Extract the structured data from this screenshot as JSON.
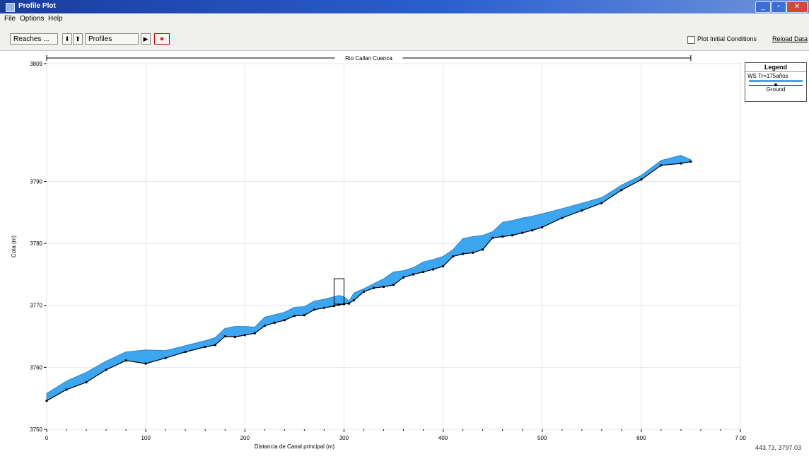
{
  "window": {
    "title": "Profile Plot"
  },
  "menu": {
    "file": "File",
    "options": "Options",
    "help": "Help"
  },
  "toolbar": {
    "reaches_label": "Reaches ...",
    "profiles_label": "Profiles",
    "plot_initial_conditions": "Plot Initial Conditions",
    "reload_data": "Reload Data"
  },
  "chart_data": {
    "type": "area",
    "reach_label": "Rio Callan Cuenca",
    "xlabel": "Distancia de Canal principal (m)",
    "ylabel": "Cota (m)",
    "xlim": [
      0,
      700
    ],
    "ylim": [
      3750,
      3809
    ],
    "xticks": [
      "0",
      "100",
      "200",
      "300",
      "400",
      "500",
      "600",
      "7 00"
    ],
    "yticks": [
      "3750",
      "3760",
      "3770",
      "3780",
      "3790",
      "3809"
    ],
    "legend_title": "Legend",
    "legend_position": "top-right",
    "series": [
      {
        "name": "WS Tr=175años",
        "color": "#3da6f0",
        "x": [
          0,
          20,
          40,
          60,
          80,
          100,
          120,
          140,
          160,
          170,
          180,
          190,
          200,
          210,
          220,
          230,
          240,
          250,
          260,
          270,
          280,
          290,
          295,
          300,
          305,
          310,
          320,
          330,
          340,
          350,
          360,
          370,
          380,
          390,
          400,
          410,
          420,
          430,
          440,
          450,
          460,
          470,
          480,
          490,
          500,
          520,
          540,
          560,
          580,
          600,
          620,
          640,
          650
        ],
        "y": [
          3755.8,
          3757.8,
          3759.2,
          3761.0,
          3762.5,
          3762.8,
          3762.7,
          3763.5,
          3764.3,
          3764.8,
          3766.3,
          3766.6,
          3766.6,
          3766.5,
          3768.1,
          3768.5,
          3768.9,
          3769.7,
          3769.8,
          3770.7,
          3771.0,
          3771.4,
          3771.6,
          3771.4,
          3770.7,
          3772.0,
          3772.7,
          3773.5,
          3774.3,
          3775.4,
          3775.6,
          3776.1,
          3777.0,
          3777.4,
          3777.9,
          3779.0,
          3780.8,
          3781.1,
          3781.3,
          3781.9,
          3783.4,
          3783.7,
          3784.1,
          3784.4,
          3784.8,
          3785.6,
          3786.5,
          3787.4,
          3789.4,
          3791.0,
          3793.4,
          3794.2,
          3793.5
        ]
      },
      {
        "name": "Ground",
        "color": "#000000",
        "x": [
          0,
          20,
          40,
          60,
          80,
          100,
          120,
          140,
          160,
          170,
          180,
          190,
          200,
          210,
          220,
          230,
          240,
          250,
          260,
          270,
          280,
          290,
          295,
          300,
          305,
          310,
          320,
          330,
          340,
          350,
          360,
          370,
          380,
          390,
          400,
          410,
          420,
          430,
          440,
          450,
          460,
          470,
          480,
          490,
          500,
          520,
          540,
          560,
          580,
          600,
          620,
          640,
          650
        ],
        "y": [
          3754.6,
          3756.4,
          3757.6,
          3759.6,
          3761.1,
          3760.6,
          3761.5,
          3762.5,
          3763.3,
          3763.6,
          3765.0,
          3764.9,
          3765.2,
          3765.5,
          3766.7,
          3767.2,
          3767.6,
          3768.3,
          3768.4,
          3769.3,
          3769.6,
          3769.9,
          3770.1,
          3770.2,
          3770.3,
          3770.8,
          3772.2,
          3772.8,
          3773.0,
          3773.3,
          3774.5,
          3775.0,
          3775.4,
          3775.8,
          3776.3,
          3777.9,
          3778.3,
          3778.5,
          3779.0,
          3780.9,
          3781.1,
          3781.3,
          3781.7,
          3782.1,
          3782.6,
          3784.1,
          3785.3,
          3786.5,
          3788.6,
          3790.3,
          3792.6,
          3792.9,
          3793.2
        ]
      }
    ],
    "annotation": {
      "name": "bridge-structure",
      "x_from": 290,
      "x_to": 300,
      "y_from": 3770.2,
      "y_top": 3774.3
    }
  },
  "status": {
    "coords": "443.73, 3797.03"
  },
  "colors": {
    "titlebar": "#1a3d9e",
    "water": "#3da6f0",
    "toolbar_bg": "#f0f0ec"
  }
}
